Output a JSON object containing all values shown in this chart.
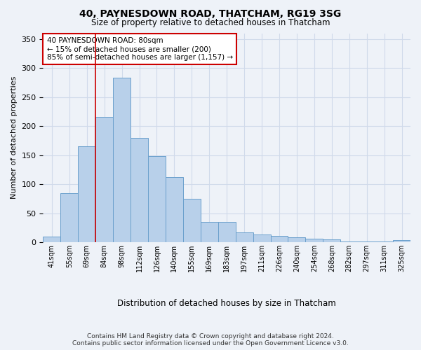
{
  "title": "40, PAYNESDOWN ROAD, THATCHAM, RG19 3SG",
  "subtitle": "Size of property relative to detached houses in Thatcham",
  "xlabel": "Distribution of detached houses by size in Thatcham",
  "ylabel": "Number of detached properties",
  "categories": [
    "41sqm",
    "55sqm",
    "69sqm",
    "84sqm",
    "98sqm",
    "112sqm",
    "126sqm",
    "140sqm",
    "155sqm",
    "169sqm",
    "183sqm",
    "197sqm",
    "211sqm",
    "226sqm",
    "240sqm",
    "254sqm",
    "268sqm",
    "282sqm",
    "297sqm",
    "311sqm",
    "325sqm"
  ],
  "values": [
    10,
    84,
    165,
    216,
    284,
    180,
    148,
    112,
    75,
    35,
    35,
    17,
    13,
    11,
    8,
    6,
    5,
    1,
    1,
    1,
    4
  ],
  "bar_color": "#b8d0ea",
  "bar_edge_color": "#6aa0cc",
  "grid_color": "#d0daea",
  "background_color": "#eef2f8",
  "vline_x": 2.5,
  "vline_color": "#cc0000",
  "annotation_line1": "40 PAYNESDOWN ROAD: 80sqm",
  "annotation_line2": "← 15% of detached houses are smaller (200)",
  "annotation_line3": "85% of semi-detached houses are larger (1,157) →",
  "annotation_box_color": "#ffffff",
  "annotation_box_edge": "#cc0000",
  "ylim": [
    0,
    360
  ],
  "yticks": [
    0,
    50,
    100,
    150,
    200,
    250,
    300,
    350
  ],
  "footer1": "Contains HM Land Registry data © Crown copyright and database right 2024.",
  "footer2": "Contains public sector information licensed under the Open Government Licence v3.0."
}
